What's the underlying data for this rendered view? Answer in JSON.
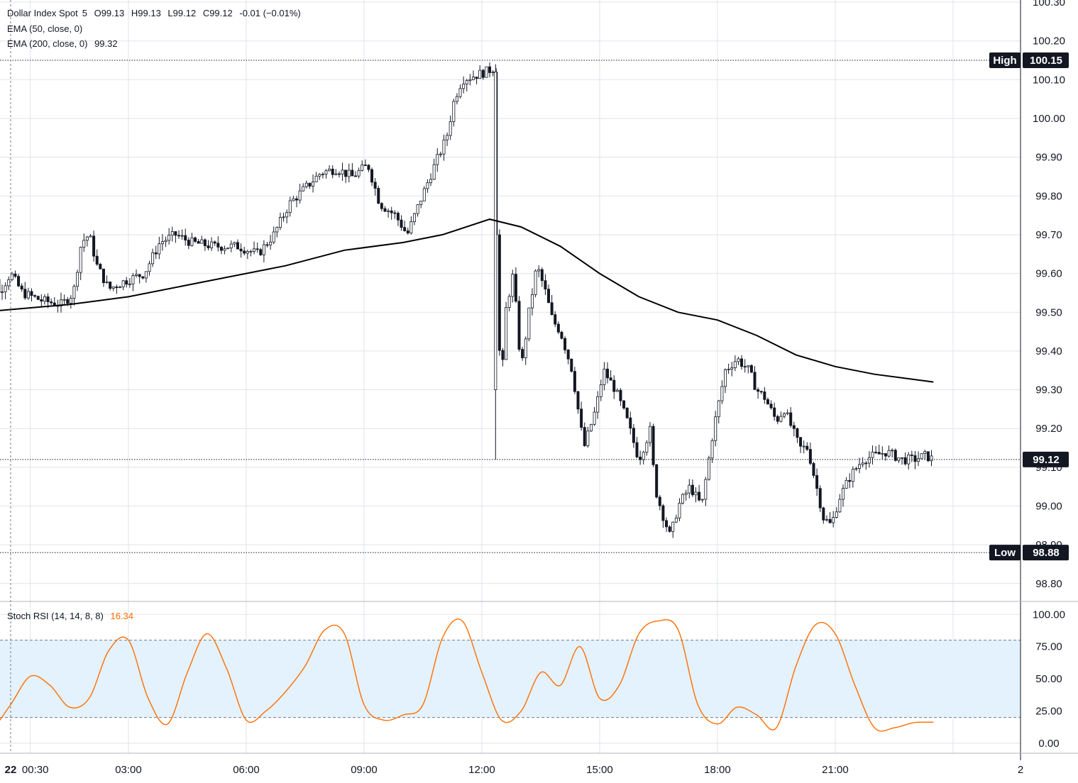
{
  "legend": {
    "symbol": "Dollar Index Spot",
    "interval": "5",
    "open": "O99.13",
    "high": "H99.13",
    "low": "L99.12",
    "close": "C99.12",
    "change": "-0.01 (−0.01%)",
    "ema50_label": "EMA (50, close, 0)",
    "ema200_label": "EMA (200, close, 0)",
    "ema200_value": "99.32",
    "stoch_label": "Stoch RSI (14, 14, 8, 8)",
    "stoch_value": "16.34"
  },
  "tags": {
    "high_label": "High",
    "high_value": "100.15",
    "last_value": "99.12",
    "low_label": "Low",
    "low_value": "98.88"
  },
  "colors": {
    "candle": "#131722",
    "ema": "#000000",
    "stoch": "#ff6d00",
    "band": "#e3f2fd",
    "grid": "#e0e3eb"
  },
  "chart_data": [
    {
      "type": "candlestick",
      "title": "Dollar Index Spot, 5",
      "x_tick_labels": [
        "22",
        "00:30",
        "03:00",
        "06:00",
        "09:00",
        "12:00",
        "15:00",
        "18:00",
        "21:00",
        "2"
      ],
      "y_tick_labels": [
        "100.30",
        "100.20",
        "100.10",
        "100.00",
        "99.90",
        "99.80",
        "99.70",
        "99.60",
        "99.50",
        "99.40",
        "99.30",
        "99.20",
        "99.10",
        "99.00",
        "98.90",
        "98.80"
      ],
      "ylim": [
        98.72,
        100.29
      ],
      "session_high": 100.15,
      "session_low": 98.88,
      "last_price": 99.12,
      "price_path": [
        [
          -0.8,
          99.58
        ],
        [
          -0.5,
          99.65
        ],
        [
          -0.3,
          99.55
        ],
        [
          0.0,
          99.6
        ],
        [
          0.3,
          99.55
        ],
        [
          0.8,
          99.53
        ],
        [
          1.3,
          99.52
        ],
        [
          1.6,
          99.55
        ],
        [
          1.8,
          99.68
        ],
        [
          2.0,
          99.7
        ],
        [
          2.2,
          99.62
        ],
        [
          2.5,
          99.56
        ],
        [
          2.9,
          99.58
        ],
        [
          3.4,
          99.6
        ],
        [
          3.8,
          99.68
        ],
        [
          4.2,
          99.7
        ],
        [
          4.6,
          99.68
        ],
        [
          5.2,
          99.67
        ],
        [
          5.8,
          99.67
        ],
        [
          6.3,
          99.65
        ],
        [
          6.7,
          99.7
        ],
        [
          7.1,
          99.78
        ],
        [
          7.5,
          99.82
        ],
        [
          7.9,
          99.86
        ],
        [
          8.3,
          99.87
        ],
        [
          8.7,
          99.85
        ],
        [
          9.1,
          99.88
        ],
        [
          9.4,
          99.78
        ],
        [
          9.8,
          99.75
        ],
        [
          10.1,
          99.7
        ],
        [
          10.4,
          99.78
        ],
        [
          10.8,
          99.88
        ],
        [
          11.1,
          99.95
        ],
        [
          11.3,
          100.05
        ],
        [
          11.5,
          100.1
        ],
        [
          11.8,
          100.11
        ],
        [
          12.1,
          100.12
        ],
        [
          12.3,
          100.13
        ],
        [
          12.4,
          99.5
        ],
        [
          12.5,
          99.3
        ],
        [
          12.6,
          99.5
        ],
        [
          12.8,
          99.6
        ],
        [
          13.0,
          99.35
        ],
        [
          13.2,
          99.5
        ],
        [
          13.4,
          99.62
        ],
        [
          13.6,
          99.56
        ],
        [
          13.8,
          99.48
        ],
        [
          14.0,
          99.45
        ],
        [
          14.3,
          99.35
        ],
        [
          14.6,
          99.15
        ],
        [
          14.9,
          99.25
        ],
        [
          15.1,
          99.35
        ],
        [
          15.4,
          99.3
        ],
        [
          15.7,
          99.22
        ],
        [
          16.0,
          99.12
        ],
        [
          16.3,
          99.2
        ],
        [
          16.4,
          99.05
        ],
        [
          16.6,
          98.98
        ],
        [
          16.8,
          98.92
        ],
        [
          17.0,
          99.0
        ],
        [
          17.3,
          99.05
        ],
        [
          17.6,
          99.0
        ],
        [
          17.9,
          99.2
        ],
        [
          18.2,
          99.35
        ],
        [
          18.5,
          99.38
        ],
        [
          18.8,
          99.35
        ],
        [
          19.0,
          99.3
        ],
        [
          19.2,
          99.28
        ],
        [
          19.5,
          99.22
        ],
        [
          19.7,
          99.25
        ],
        [
          19.9,
          99.2
        ],
        [
          20.1,
          99.15
        ],
        [
          20.3,
          99.15
        ],
        [
          20.5,
          99.06
        ],
        [
          20.7,
          98.97
        ],
        [
          20.9,
          98.95
        ],
        [
          21.1,
          99.02
        ],
        [
          21.4,
          99.08
        ],
        [
          21.7,
          99.12
        ],
        [
          22.0,
          99.13
        ],
        [
          22.3,
          99.14
        ],
        [
          22.5,
          99.13
        ],
        [
          22.7,
          99.12
        ],
        [
          23.0,
          99.12
        ],
        [
          23.3,
          99.13
        ],
        [
          23.5,
          99.12
        ]
      ],
      "ema200": {
        "x": [
          -0.8,
          1.5,
          3.0,
          5.0,
          7.0,
          8.5,
          10.0,
          11.0,
          12.2,
          13.0,
          14.0,
          15.0,
          16.0,
          17.0,
          18.0,
          19.0,
          20.0,
          21.0,
          22.0,
          23.5
        ],
        "y": [
          99.5,
          99.52,
          99.54,
          99.58,
          99.62,
          99.66,
          99.68,
          99.7,
          99.74,
          99.72,
          99.67,
          99.6,
          99.54,
          99.5,
          99.48,
          99.44,
          99.39,
          99.36,
          99.34,
          99.32
        ]
      }
    },
    {
      "type": "line",
      "title": "Stoch RSI (14, 14, 8, 8)",
      "y_tick_labels": [
        "100.00",
        "75.00",
        "50.00",
        "25.00",
        "0.00"
      ],
      "ylim": [
        -5,
        103
      ],
      "band": [
        20,
        80
      ],
      "x": [
        -0.8,
        -0.5,
        0.0,
        0.5,
        1.0,
        1.5,
        2.0,
        2.5,
        3.0,
        3.5,
        4.0,
        4.5,
        5.0,
        5.5,
        6.0,
        6.5,
        7.0,
        7.5,
        8.0,
        8.5,
        9.0,
        9.5,
        10.0,
        10.5,
        11.0,
        11.5,
        12.0,
        12.5,
        13.0,
        13.5,
        14.0,
        14.5,
        15.0,
        15.5,
        16.0,
        16.5,
        17.0,
        17.5,
        18.0,
        18.5,
        19.0,
        19.5,
        20.0,
        20.5,
        21.0,
        21.5,
        22.0,
        22.5,
        23.0,
        23.5
      ],
      "y": [
        12,
        10,
        30,
        52,
        45,
        28,
        35,
        72,
        80,
        35,
        15,
        55,
        85,
        58,
        18,
        25,
        40,
        60,
        88,
        85,
        30,
        18,
        22,
        30,
        82,
        95,
        55,
        18,
        25,
        55,
        45,
        75,
        35,
        45,
        85,
        95,
        88,
        30,
        15,
        28,
        22,
        12,
        60,
        92,
        85,
        45,
        12,
        12,
        16,
        16.34
      ]
    }
  ]
}
